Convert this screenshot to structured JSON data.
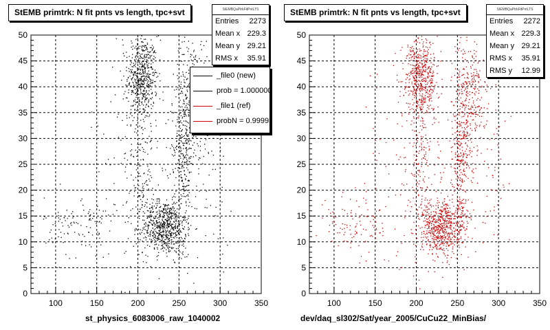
{
  "chart_data": [
    {
      "type": "scatter",
      "title": "StEMB primtrk: N fit pnts vs length, tpc+svt",
      "xlabel": "st_physics_6083006_raw_1040002",
      "ylabel": "",
      "xlim": [
        70,
        350
      ],
      "ylim": [
        0,
        50
      ],
      "xticks": [
        100,
        150,
        200,
        250,
        300,
        350
      ],
      "yticks": [
        0,
        5,
        10,
        15,
        20,
        25,
        30,
        35,
        40,
        45,
        50
      ],
      "grid": true,
      "marker_color": "#000000",
      "stats": {
        "name": "StEMBQaPtrkFitPntLTS",
        "rows": [
          {
            "label": "Entries",
            "value": "2273"
          },
          {
            "label": "Mean x",
            "value": "229.3"
          },
          {
            "label": "Mean y",
            "value": "29.21"
          },
          {
            "label": "RMS x",
            "value": "35.91"
          }
        ]
      },
      "legend": [
        {
          "label": "_file0 (new)",
          "color": "#000000"
        },
        {
          "label": "prob = 1.000000",
          "color": "#000000"
        },
        {
          "label": "_file1 (ref)",
          "color": "#cc0000"
        },
        {
          "label": "probN = 0.99993",
          "color": "#cc0000"
        }
      ],
      "legend_position": "top-right",
      "clusters": [
        {
          "x_mean": 205,
          "x_sd": 9,
          "y_mean": 42,
          "y_sd": 4,
          "n": 520
        },
        {
          "x_mean": 232,
          "x_sd": 13,
          "y_mean": 13,
          "y_sd": 2.6,
          "n": 640
        },
        {
          "x_mean": 255,
          "x_sd": 6,
          "y_mean": 28,
          "y_sd": 9,
          "n": 330
        },
        {
          "x_mean": 268,
          "x_sd": 9,
          "y_mean": 38,
          "y_sd": 6,
          "n": 230
        },
        {
          "x_mean": 205,
          "x_sd": 7,
          "y_mean": 25,
          "y_sd": 8,
          "n": 120
        },
        {
          "x_mean": 130,
          "x_sd": 22,
          "y_mean": 13,
          "y_sd": 3,
          "n": 110
        },
        {
          "x_mean": 200,
          "x_sd": 30,
          "y_mean": 28,
          "y_sd": 12,
          "n": 180
        },
        {
          "x_mean": 290,
          "x_sd": 12,
          "y_mean": 25,
          "y_sd": 8,
          "n": 60
        }
      ]
    },
    {
      "type": "scatter",
      "title": "StEMB primtrk: N fit pnts vs length, tpc+svt",
      "xlabel": "dev/daq_sl302/Sat/year_2005/CuCu22_MinBias/",
      "ylabel": "",
      "xlim": [
        70,
        350
      ],
      "ylim": [
        0,
        50
      ],
      "xticks": [
        100,
        150,
        200,
        250,
        300,
        350
      ],
      "yticks": [
        0,
        5,
        10,
        15,
        20,
        25,
        30,
        35,
        40,
        45,
        50
      ],
      "grid": true,
      "marker_color": "#cc0000",
      "stats": {
        "name": "StEMBQaPtrkFitPntLTS",
        "rows": [
          {
            "label": "Entries",
            "value": "2272"
          },
          {
            "label": "Mean x",
            "value": "229.3"
          },
          {
            "label": "Mean y",
            "value": "29.21"
          },
          {
            "label": "RMS x",
            "value": "35.91"
          },
          {
            "label": "RMS y",
            "value": "12.99"
          }
        ]
      },
      "clusters": [
        {
          "x_mean": 205,
          "x_sd": 9,
          "y_mean": 42,
          "y_sd": 4,
          "n": 520
        },
        {
          "x_mean": 232,
          "x_sd": 13,
          "y_mean": 13,
          "y_sd": 2.6,
          "n": 640
        },
        {
          "x_mean": 255,
          "x_sd": 6,
          "y_mean": 28,
          "y_sd": 9,
          "n": 330
        },
        {
          "x_mean": 268,
          "x_sd": 9,
          "y_mean": 38,
          "y_sd": 6,
          "n": 230
        },
        {
          "x_mean": 205,
          "x_sd": 7,
          "y_mean": 25,
          "y_sd": 8,
          "n": 120
        },
        {
          "x_mean": 130,
          "x_sd": 22,
          "y_mean": 13,
          "y_sd": 3,
          "n": 110
        },
        {
          "x_mean": 200,
          "x_sd": 30,
          "y_mean": 28,
          "y_sd": 12,
          "n": 180
        },
        {
          "x_mean": 290,
          "x_sd": 12,
          "y_mean": 25,
          "y_sd": 8,
          "n": 60
        }
      ]
    }
  ]
}
